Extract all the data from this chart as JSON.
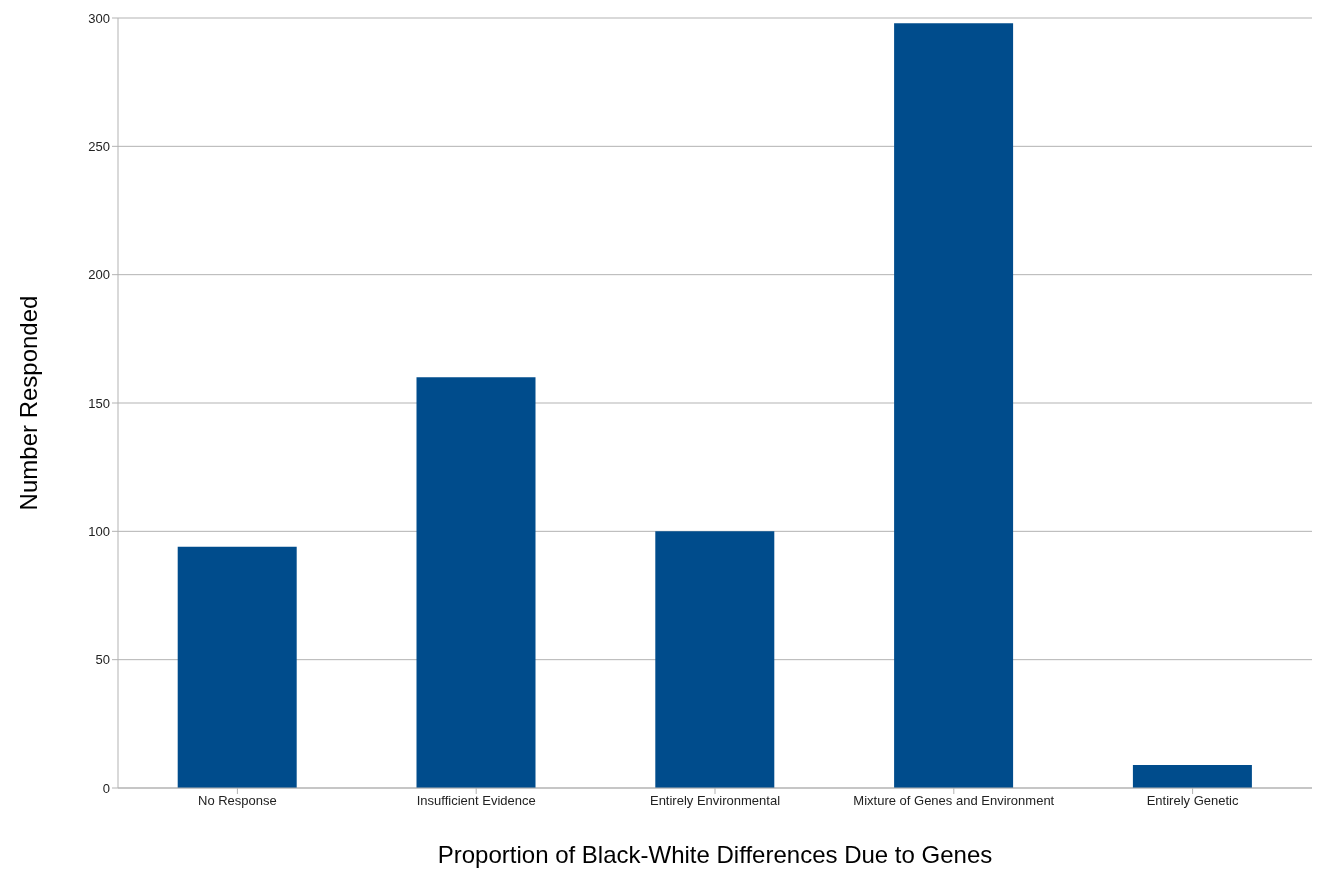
{
  "chart_data": {
    "type": "bar",
    "xlabel": "Proportion of Black-White Differences Due to Genes",
    "ylabel": "Number Responded",
    "categories": [
      "No Response",
      "Insufficient Evidence",
      "Entirely Environmental",
      "Mixture of Genes and Environment",
      "Entirely Genetic"
    ],
    "values": [
      94,
      160,
      100,
      298,
      9
    ],
    "color": "#004c8c",
    "ylim": [
      0,
      300
    ],
    "yticks": [
      0,
      50,
      100,
      150,
      200,
      250,
      300
    ],
    "grid": "y"
  }
}
